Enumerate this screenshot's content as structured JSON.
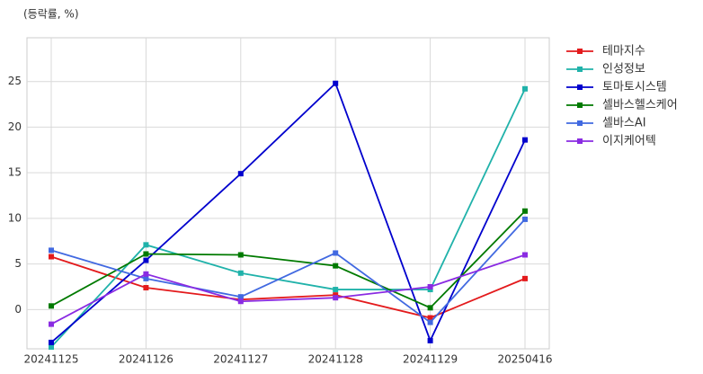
{
  "chart_data": {
    "type": "line",
    "title": "(등락률, %)",
    "categories": [
      "20241125",
      "20241126",
      "20241127",
      "20241128",
      "20241129",
      "20250416"
    ],
    "series": [
      {
        "name": "테마지수",
        "color": "#e31a1c",
        "values": [
          5.8,
          2.4,
          1.1,
          1.6,
          -0.9,
          3.4
        ]
      },
      {
        "name": "인성정보",
        "color": "#20b2aa",
        "values": [
          -4.1,
          7.1,
          4.0,
          2.2,
          2.2,
          24.2
        ]
      },
      {
        "name": "토마토시스템",
        "color": "#0000cd",
        "values": [
          -3.6,
          5.4,
          14.9,
          24.8,
          -3.4,
          18.6
        ]
      },
      {
        "name": "셀바스헬스케어",
        "color": "#007a00",
        "values": [
          0.4,
          6.1,
          6.0,
          4.8,
          0.2,
          10.8
        ]
      },
      {
        "name": "셀바스AI",
        "color": "#4169e1",
        "values": [
          6.5,
          3.4,
          1.4,
          6.2,
          -1.4,
          9.9
        ]
      },
      {
        "name": "이지케어텍",
        "color": "#8a2be2",
        "values": [
          -1.6,
          3.9,
          0.9,
          1.3,
          2.5,
          6.0
        ]
      }
    ],
    "ylim": [
      -4.3,
      29.8
    ],
    "yticks": [
      0,
      5,
      10,
      15,
      20,
      25
    ],
    "grid": true,
    "legend": "outside-right"
  }
}
